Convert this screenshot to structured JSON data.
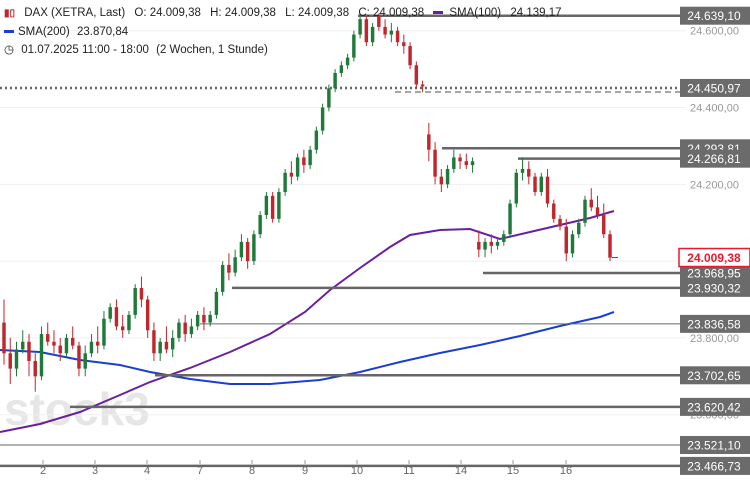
{
  "legend": {
    "instrument": "DAX (XETRA, Last)",
    "open": "O: 24.009,38",
    "high": "H: 24.009,38",
    "low": "L: 24.009,38",
    "close": "C: 24.009,38",
    "sma100_label": "SMA(100)",
    "sma100_value": "24.139,17",
    "sma200_label": "SMA(200)",
    "sma200_value": "23.870,84",
    "period": "01.07.2025 11:00 - 18:00",
    "range": "(2 Wochen, 1 Stunde)"
  },
  "watermark": "stock3",
  "colors": {
    "up": "#1f7a3a",
    "down": "#c0262c",
    "sma100": "#6a1fa0",
    "sma200": "#1a3fd0",
    "level": "#666666",
    "last_price": "#e8192c"
  },
  "chart_data": {
    "type": "candlestick",
    "x_ticks": [
      "2",
      "3",
      "4",
      "7",
      "8",
      "9",
      "10",
      "11",
      "14",
      "15",
      "16"
    ],
    "y_ticks": [
      "24.600,00",
      "24.400,00",
      "24.200,00",
      "24.000,00",
      "23.800,00",
      "23.600,00"
    ],
    "ylim": [
      23430,
      24680
    ],
    "levels": [
      "24.639,10",
      "24.450,97",
      "24.293,81",
      "24.266,81",
      "23.968,95",
      "23.930,32",
      "23.836,58",
      "23.702,65",
      "23.620,42",
      "23.521,10",
      "23.466,73"
    ],
    "last_price": "24.009,38",
    "candles": [
      [
        23840,
        23900,
        23730,
        23760
      ],
      [
        23760,
        23800,
        23680,
        23720
      ],
      [
        23720,
        23790,
        23700,
        23770
      ],
      [
        23770,
        23820,
        23760,
        23790
      ],
      [
        23790,
        23810,
        23700,
        23740
      ],
      [
        23740,
        23760,
        23660,
        23700
      ],
      [
        23700,
        23830,
        23690,
        23810
      ],
      [
        23810,
        23840,
        23780,
        23790
      ],
      [
        23790,
        23820,
        23760,
        23780
      ],
      [
        23780,
        23800,
        23740,
        23760
      ],
      [
        23760,
        23810,
        23750,
        23800
      ],
      [
        23800,
        23830,
        23770,
        23780
      ],
      [
        23780,
        23790,
        23700,
        23720
      ],
      [
        23720,
        23780,
        23700,
        23760
      ],
      [
        23760,
        23810,
        23750,
        23790
      ],
      [
        23790,
        23830,
        23760,
        23780
      ],
      [
        23780,
        23870,
        23770,
        23850
      ],
      [
        23850,
        23890,
        23840,
        23880
      ],
      [
        23880,
        23900,
        23820,
        23830
      ],
      [
        23830,
        23860,
        23800,
        23820
      ],
      [
        23820,
        23870,
        23810,
        23860
      ],
      [
        23860,
        23940,
        23850,
        23930
      ],
      [
        23930,
        23960,
        23880,
        23900
      ],
      [
        23900,
        23910,
        23800,
        23820
      ],
      [
        23820,
        23840,
        23740,
        23760
      ],
      [
        23760,
        23800,
        23740,
        23790
      ],
      [
        23790,
        23830,
        23760,
        23770
      ],
      [
        23770,
        23820,
        23750,
        23800
      ],
      [
        23800,
        23850,
        23790,
        23840
      ],
      [
        23840,
        23860,
        23790,
        23810
      ],
      [
        23810,
        23850,
        23800,
        23830
      ],
      [
        23830,
        23870,
        23820,
        23860
      ],
      [
        23860,
        23880,
        23820,
        23840
      ],
      [
        23840,
        23870,
        23830,
        23860
      ],
      [
        23860,
        23930,
        23850,
        23920
      ],
      [
        23920,
        24000,
        23910,
        23990
      ],
      [
        23990,
        24020,
        23950,
        23970
      ],
      [
        23970,
        24030,
        23960,
        24010
      ],
      [
        24010,
        24070,
        24000,
        24050
      ],
      [
        24050,
        24060,
        23980,
        24000
      ],
      [
        24000,
        24080,
        23990,
        24070
      ],
      [
        24070,
        24130,
        24060,
        24120
      ],
      [
        24120,
        24180,
        24110,
        24170
      ],
      [
        24170,
        24180,
        24100,
        24110
      ],
      [
        24110,
        24190,
        24100,
        24180
      ],
      [
        24180,
        24240,
        24170,
        24230
      ],
      [
        24230,
        24260,
        24200,
        24220
      ],
      [
        24220,
        24280,
        24210,
        24270
      ],
      [
        24270,
        24290,
        24230,
        24250
      ],
      [
        24250,
        24300,
        24240,
        24290
      ],
      [
        24290,
        24350,
        24280,
        24340
      ],
      [
        24340,
        24410,
        24330,
        24400
      ],
      [
        24400,
        24460,
        24390,
        24450
      ],
      [
        24450,
        24500,
        24440,
        24490
      ],
      [
        24490,
        24520,
        24480,
        24510
      ],
      [
        24510,
        24540,
        24500,
        24530
      ],
      [
        24530,
        24600,
        24520,
        24590
      ],
      [
        24590,
        24640,
        24580,
        24630
      ],
      [
        24630,
        24640,
        24560,
        24570
      ],
      [
        24570,
        24620,
        24560,
        24610
      ],
      [
        24640,
        24645,
        24600,
        24610
      ],
      [
        24610,
        24630,
        24580,
        24590
      ],
      [
        24590,
        24620,
        24570,
        24600
      ],
      [
        24600,
        24610,
        24560,
        24570
      ],
      [
        24570,
        24590,
        24540,
        24560
      ],
      [
        24560,
        24570,
        24500,
        24510
      ],
      [
        24510,
        24520,
        24450,
        24460
      ],
      [
        24460,
        24470,
        24440,
        24455
      ],
      [
        24330,
        24360,
        24260,
        24290
      ],
      [
        24290,
        24310,
        24200,
        24220
      ],
      [
        24220,
        24240,
        24180,
        24200
      ],
      [
        24200,
        24250,
        24190,
        24240
      ],
      [
        24240,
        24290,
        24230,
        24270
      ],
      [
        24270,
        24280,
        24240,
        24260
      ],
      [
        24260,
        24280,
        24240,
        24250
      ],
      [
        24250,
        24270,
        24230,
        24260
      ],
      [
        24050,
        24080,
        24010,
        24030
      ],
      [
        24030,
        24060,
        24010,
        24050
      ],
      [
        24050,
        24070,
        24020,
        24040
      ],
      [
        24040,
        24060,
        24030,
        24050
      ],
      [
        24050,
        24080,
        24040,
        24070
      ],
      [
        24070,
        24160,
        24060,
        24150
      ],
      [
        24150,
        24240,
        24140,
        24230
      ],
      [
        24230,
        24270,
        24210,
        24240
      ],
      [
        24240,
        24260,
        24200,
        24220
      ],
      [
        24220,
        24230,
        24170,
        24180
      ],
      [
        24180,
        24230,
        24170,
        24220
      ],
      [
        24220,
        24240,
        24140,
        24150
      ],
      [
        24150,
        24160,
        24100,
        24110
      ],
      [
        24110,
        24120,
        24080,
        24090
      ],
      [
        24090,
        24110,
        24000,
        24020
      ],
      [
        24020,
        24080,
        24010,
        24070
      ],
      [
        24070,
        24110,
        24060,
        24100
      ],
      [
        24100,
        24170,
        24090,
        24160
      ],
      [
        24160,
        24190,
        24130,
        24140
      ],
      [
        24140,
        24170,
        24110,
        24120
      ],
      [
        24120,
        24150,
        24060,
        24070
      ],
      [
        24070,
        24080,
        24000,
        24009
      ]
    ]
  }
}
